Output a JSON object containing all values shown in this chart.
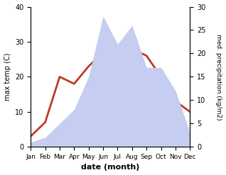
{
  "months": [
    "Jan",
    "Feb",
    "Mar",
    "Apr",
    "May",
    "Jun",
    "Jul",
    "Aug",
    "Sep",
    "Oct",
    "Nov",
    "Dec"
  ],
  "temperature": [
    3,
    7,
    20,
    18,
    23,
    27,
    28,
    28,
    26,
    20,
    13,
    10
  ],
  "precipitation": [
    1,
    2,
    5,
    8,
    15,
    28,
    22,
    26,
    17,
    17,
    12,
    3
  ],
  "temp_color": "#c0392b",
  "precip_fill_color": "#c5cdf0",
  "ylim_temp": [
    0,
    40
  ],
  "ylim_precip": [
    0,
    30
  ],
  "xlabel": "date (month)",
  "ylabel_left": "max temp (C)",
  "ylabel_right": "med. precipitation (kg/m2)",
  "temp_linewidth": 2.0,
  "background_color": "#ffffff",
  "yticks_temp": [
    0,
    10,
    20,
    30,
    40
  ],
  "yticks_precip": [
    0,
    5,
    10,
    15,
    20,
    25,
    30
  ]
}
